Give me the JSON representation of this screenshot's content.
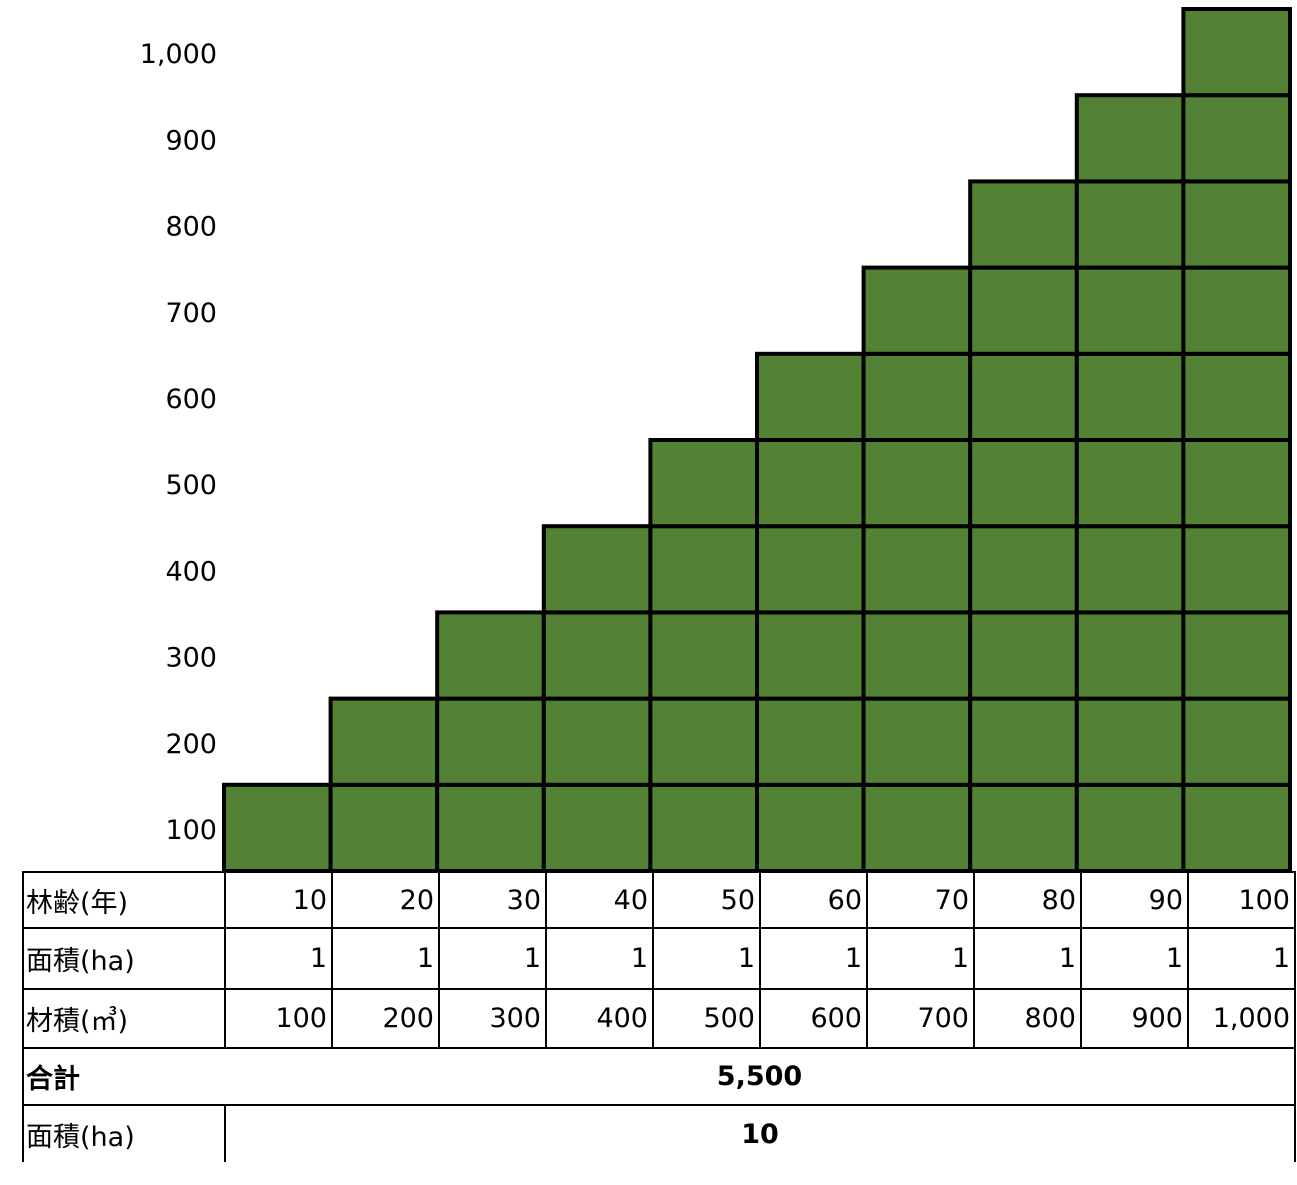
{
  "chart_data": {
    "type": "bar",
    "categories": [
      "10",
      "20",
      "30",
      "40",
      "50",
      "60",
      "70",
      "80",
      "90",
      "100"
    ],
    "values": [
      100,
      200,
      300,
      400,
      500,
      600,
      700,
      800,
      900,
      1000
    ],
    "ytick_labels": [
      "100",
      "200",
      "300",
      "400",
      "500",
      "600",
      "700",
      "800",
      "900",
      "1,000"
    ],
    "ylim": [
      0,
      1000
    ],
    "grid": false,
    "colors": {
      "bar": "#548235",
      "border": "#000000"
    }
  },
  "table": {
    "rows": [
      {
        "label": "林齢(年)",
        "values": [
          "10",
          "20",
          "30",
          "40",
          "50",
          "60",
          "70",
          "80",
          "90",
          "100"
        ]
      },
      {
        "label": "面積(ha)",
        "values": [
          "1",
          "1",
          "1",
          "1",
          "1",
          "1",
          "1",
          "1",
          "1",
          "1"
        ]
      },
      {
        "label": "材積(㎥)",
        "values": [
          "100",
          "200",
          "300",
          "400",
          "500",
          "600",
          "700",
          "800",
          "900",
          "1,000"
        ]
      }
    ],
    "total": {
      "label": "合計",
      "value": "5,500"
    },
    "area_total": {
      "label": "面積(ha)",
      "value": "10"
    }
  }
}
